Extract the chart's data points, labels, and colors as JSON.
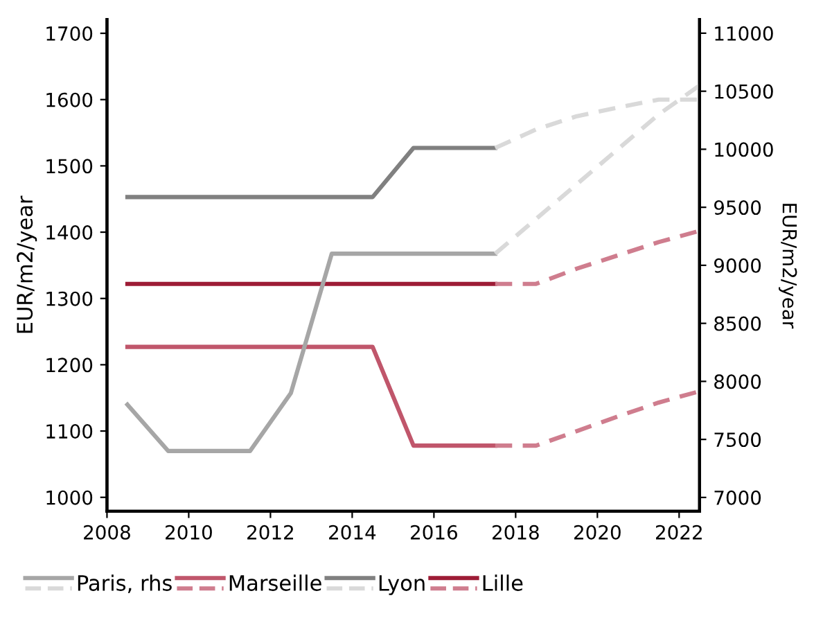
{
  "chart_data": {
    "type": "line",
    "ylabel": "EUR/m2/year",
    "y2label": "EUR/m2/year",
    "xlim": [
      2008,
      2022.5
    ],
    "xticks": [
      2008,
      2010,
      2012,
      2014,
      2016,
      2018,
      2020,
      2022
    ],
    "ylim": [
      979,
      1721
    ],
    "yticks": [
      1000,
      1100,
      1200,
      1300,
      1400,
      1500,
      1600,
      1700
    ],
    "y2lim": [
      6881,
      11119
    ],
    "y2ticks": [
      7000,
      7500,
      8000,
      8500,
      9000,
      9500,
      10000,
      10500,
      11000
    ],
    "grid": false,
    "legend": "bottom",
    "marker": "none",
    "series": [
      {
        "name": "Paris, rhs",
        "color": "#a6a6a6",
        "axis": "y2",
        "line_style": "solid",
        "x": [
          2008.5,
          2009.5,
          2011.5,
          2012.5,
          2013.5,
          2017.5
        ],
        "values": [
          7800,
          7400,
          7400,
          7900,
          9100,
          9100
        ]
      },
      {
        "color": "#d9d9d9",
        "axis": "y2",
        "line_style": "dashed",
        "x": [
          2017.5,
          2018.5,
          2019.5,
          2020.5,
          2021.5,
          2022.5
        ],
        "values": [
          9100,
          9400,
          9700,
          10000,
          10300,
          10550
        ]
      },
      {
        "name": "Marseille",
        "color": "#c0566b",
        "line_style": "solid",
        "x": [
          2008.5,
          2014.5,
          2015.5,
          2017.5
        ],
        "values": [
          1227,
          1227,
          1078,
          1078
        ]
      },
      {
        "color": "#cf7d8e",
        "line_style": "dashed",
        "x": [
          2017.5,
          2018.5,
          2019.5,
          2020.5,
          2021.5,
          2022.5
        ],
        "values": [
          1078,
          1078,
          1100,
          1122,
          1143,
          1160
        ]
      },
      {
        "name": "Lyon",
        "color": "#808080",
        "line_style": "solid",
        "x": [
          2008.5,
          2014.5,
          2015.5,
          2017.5
        ],
        "values": [
          1453,
          1453,
          1527,
          1527
        ]
      },
      {
        "color": "#d9d9d9",
        "line_style": "dashed",
        "x": [
          2017.5,
          2018.5,
          2019.5,
          2020.5,
          2021.5,
          2022.5
        ],
        "values": [
          1527,
          1555,
          1575,
          1588,
          1600,
          1600
        ]
      },
      {
        "name": "Lille",
        "color": "#9d1c36",
        "line_style": "solid",
        "x": [
          2008.5,
          2017.5
        ],
        "values": [
          1322,
          1322
        ]
      },
      {
        "color": "#cf7d8e",
        "line_style": "dashed",
        "x": [
          2017.5,
          2018.5,
          2019.5,
          2020.5,
          2021.5,
          2022.5
        ],
        "values": [
          1322,
          1322,
          1345,
          1365,
          1385,
          1402
        ]
      }
    ]
  }
}
